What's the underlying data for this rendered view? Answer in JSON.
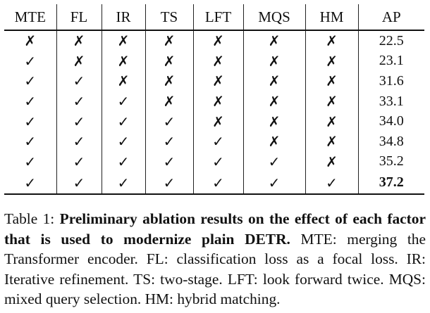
{
  "table": {
    "headers": [
      "MTE",
      "FL",
      "IR",
      "TS",
      "LFT",
      "MQS",
      "HM",
      "AP"
    ],
    "rows": [
      {
        "marks": [
          "✗",
          "✗",
          "✗",
          "✗",
          "✗",
          "✗",
          "✗"
        ],
        "ap": "22.5",
        "best": false
      },
      {
        "marks": [
          "✓",
          "✗",
          "✗",
          "✗",
          "✗",
          "✗",
          "✗"
        ],
        "ap": "23.1",
        "best": false
      },
      {
        "marks": [
          "✓",
          "✓",
          "✗",
          "✗",
          "✗",
          "✗",
          "✗"
        ],
        "ap": "31.6",
        "best": false
      },
      {
        "marks": [
          "✓",
          "✓",
          "✓",
          "✗",
          "✗",
          "✗",
          "✗"
        ],
        "ap": "33.1",
        "best": false
      },
      {
        "marks": [
          "✓",
          "✓",
          "✓",
          "✓",
          "✗",
          "✗",
          "✗"
        ],
        "ap": "34.0",
        "best": false
      },
      {
        "marks": [
          "✓",
          "✓",
          "✓",
          "✓",
          "✓",
          "✗",
          "✗"
        ],
        "ap": "34.8",
        "best": false
      },
      {
        "marks": [
          "✓",
          "✓",
          "✓",
          "✓",
          "✓",
          "✓",
          "✗"
        ],
        "ap": "35.2",
        "best": false
      },
      {
        "marks": [
          "✓",
          "✓",
          "✓",
          "✓",
          "✓",
          "✓",
          "✓"
        ],
        "ap": "37.2",
        "best": true
      }
    ]
  },
  "caption": {
    "label": "Table 1:",
    "title": "Preliminary ablation results on the effect of each factor that is used to modernize plain DETR.",
    "body": "MTE: merging the Transformer encoder. FL: classification loss as a focal loss. IR: Iterative refinement. TS: two-stage. LFT: look forward twice. MQS: mixed query selection. HM: hybrid matching."
  }
}
